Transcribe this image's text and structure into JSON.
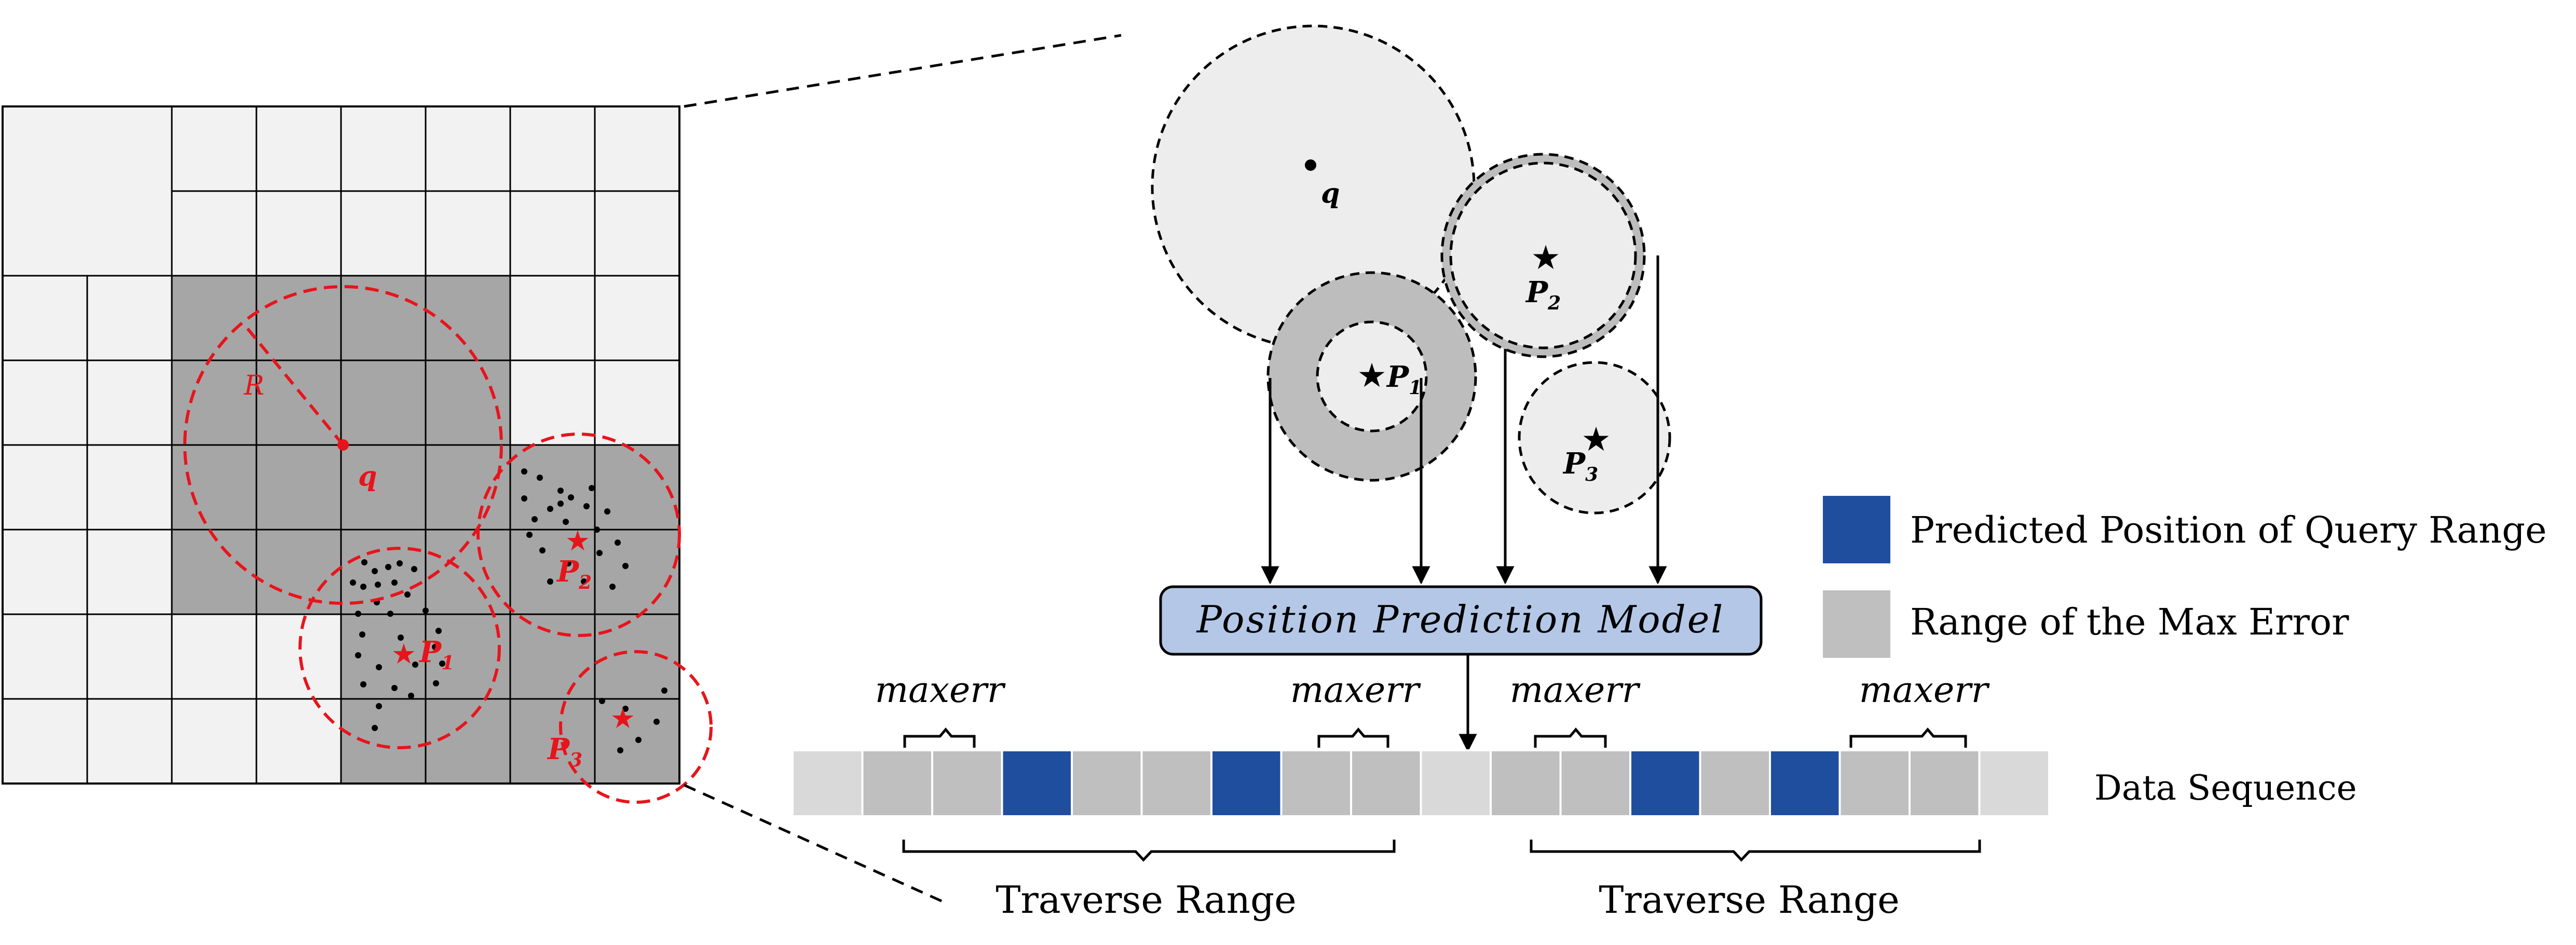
{
  "grid": {
    "query_label": "q",
    "radius_label": "R",
    "points": [
      {
        "label": "P",
        "sub": "1"
      },
      {
        "label": "P",
        "sub": "2"
      },
      {
        "label": "P",
        "sub": "3"
      }
    ]
  },
  "zoom": {
    "query_label": "q",
    "points": [
      {
        "label": "P",
        "sub": "1"
      },
      {
        "label": "P",
        "sub": "2"
      },
      {
        "label": "P",
        "sub": "3"
      }
    ]
  },
  "model_label": "Position Prediction Model",
  "maxerr_label": "maxerr",
  "sequence": {
    "label": "Data Sequence",
    "cells": [
      "light",
      "err",
      "err",
      "pred",
      "err",
      "err",
      "pred",
      "err",
      "err",
      "light",
      "err",
      "err",
      "pred",
      "err",
      "pred",
      "err",
      "err",
      "light"
    ]
  },
  "traverse_labels": [
    "Traverse Range",
    "Traverse Range"
  ],
  "legend": [
    {
      "label": "Predicted Position of Query Range",
      "color": "#1f4e9e"
    },
    {
      "label": "Range of the Max Error",
      "color": "#bfbfbf"
    }
  ],
  "colors": {
    "grid_light": "#f2f2f2",
    "grid_dark": "#a6a6a6",
    "red": "#e8141c",
    "model_fill": "#b4c7e7",
    "predicted": "#1f4e9e",
    "max_error": "#bfbfbf",
    "seq_light": "#d9d9d9",
    "circle_light": "#ededed",
    "circle_dark": "#bdbdbd"
  }
}
